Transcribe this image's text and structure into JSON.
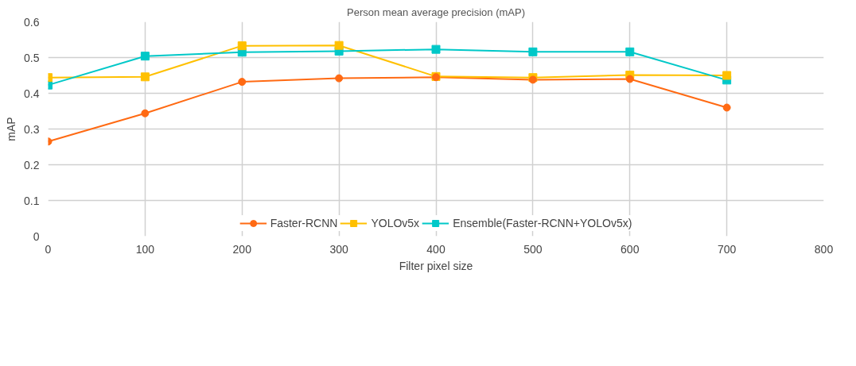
{
  "chart_data": {
    "type": "line",
    "title": "Person mean average precision (mAP)",
    "xlabel": "Filter pixel size",
    "ylabel": "mAP",
    "x": [
      0,
      100,
      200,
      300,
      400,
      500,
      600,
      700
    ],
    "series": [
      {
        "name": "Faster-RCNN",
        "color": "#ff6a13",
        "marker": "circle",
        "values": [
          0.265,
          0.344,
          0.432,
          0.442,
          0.445,
          0.438,
          0.44,
          0.36
        ]
      },
      {
        "name": "YOLOv5x",
        "color": "#ffc000",
        "marker": "square",
        "values": [
          0.444,
          0.446,
          0.533,
          0.534,
          0.447,
          0.444,
          0.451,
          0.45
        ]
      },
      {
        "name": "Ensemble(Faster-RCNN+YOLOv5x)",
        "color": "#00c8c8",
        "marker": "square",
        "values": [
          0.423,
          0.504,
          0.515,
          0.518,
          0.523,
          0.516,
          0.516,
          0.437
        ]
      }
    ],
    "xlim": [
      0,
      800
    ],
    "xticks": [
      0,
      100,
      200,
      300,
      400,
      500,
      600,
      700,
      800
    ],
    "ylim": [
      0,
      0.6
    ],
    "yticks": [
      0,
      {
        "value": 0.1,
        "label": "0.1"
      },
      {
        "value": 0.2,
        "label": "0.2"
      },
      {
        "value": 0.3,
        "label": "0.3"
      },
      {
        "value": 0.4,
        "label": "0.4"
      },
      {
        "value": 0.5,
        "label": "0.5"
      },
      {
        "value": 0.6,
        "label": "0.6"
      }
    ],
    "grid": true,
    "legend": "bottom",
    "line_style": "solid"
  }
}
